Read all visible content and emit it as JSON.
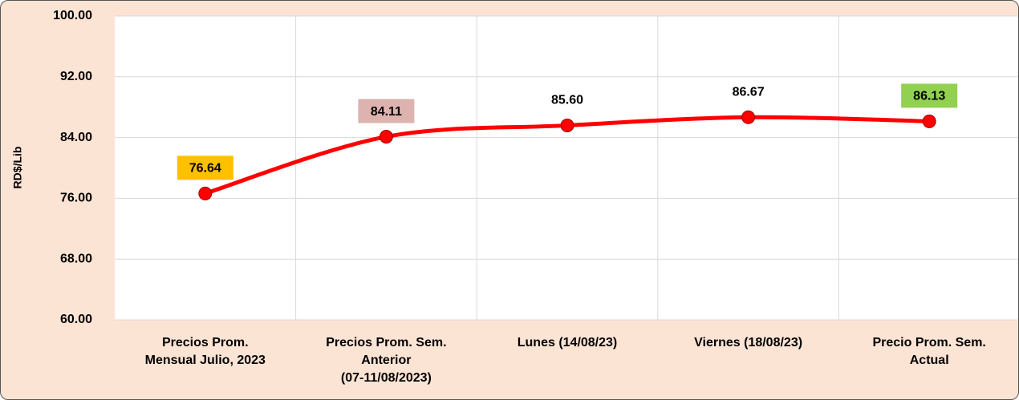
{
  "chart_data": {
    "type": "line",
    "y_axis_label": "RD$/Lib",
    "categories": [
      "Precios Prom.\nMensual Julio, 2023",
      "Precios Prom. Sem.\nAnterior\n(07-11/08/2023)",
      "Lunes  (14/08/23)",
      "Viernes  (18/08/23)",
      "Precio Prom. Sem.\nActual"
    ],
    "series": [
      {
        "color": "#ff0000",
        "values": [
          76.64,
          84.11,
          85.6,
          86.67,
          86.13
        ],
        "value_labels": [
          "76.64",
          "84.11",
          "85.60",
          "86.67",
          "86.13"
        ],
        "label_colors": [
          "#ffc000",
          "#ddb3b0",
          null,
          null,
          "#92d050"
        ]
      }
    ],
    "ylim": [
      60,
      100
    ],
    "yticks": [
      {
        "value": 60,
        "label": "60.00"
      },
      {
        "value": 68,
        "label": "68.00"
      },
      {
        "value": 76,
        "label": "76.00"
      },
      {
        "value": 84,
        "label": "84.00"
      },
      {
        "value": 92,
        "label": "92.00"
      },
      {
        "value": 100,
        "label": "100.00"
      }
    ],
    "grid": true
  }
}
